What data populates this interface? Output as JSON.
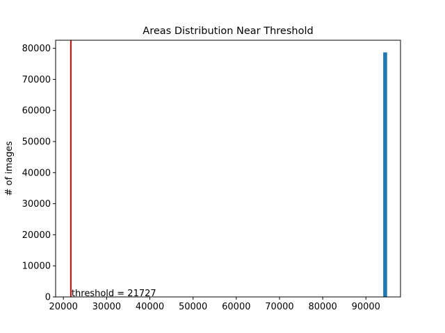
{
  "chart_data": {
    "type": "bar",
    "title": "Areas Distribution Near Threshold",
    "xlabel": "",
    "ylabel": "# of images",
    "xlim": [
      18200,
      98000
    ],
    "ylim": [
      0,
      82600
    ],
    "x_ticks": [
      20000,
      30000,
      40000,
      50000,
      60000,
      70000,
      80000,
      90000
    ],
    "y_ticks": [
      0,
      10000,
      20000,
      30000,
      40000,
      50000,
      60000,
      70000,
      80000
    ],
    "bars": [
      {
        "x_start": 94000,
        "x_end": 94900,
        "count": 78700
      }
    ],
    "threshold": {
      "value": 21727,
      "label": "threshold = 21727",
      "color": "#e00000"
    },
    "bar_color": "#1f77b4",
    "grid": false,
    "legend": "none"
  }
}
